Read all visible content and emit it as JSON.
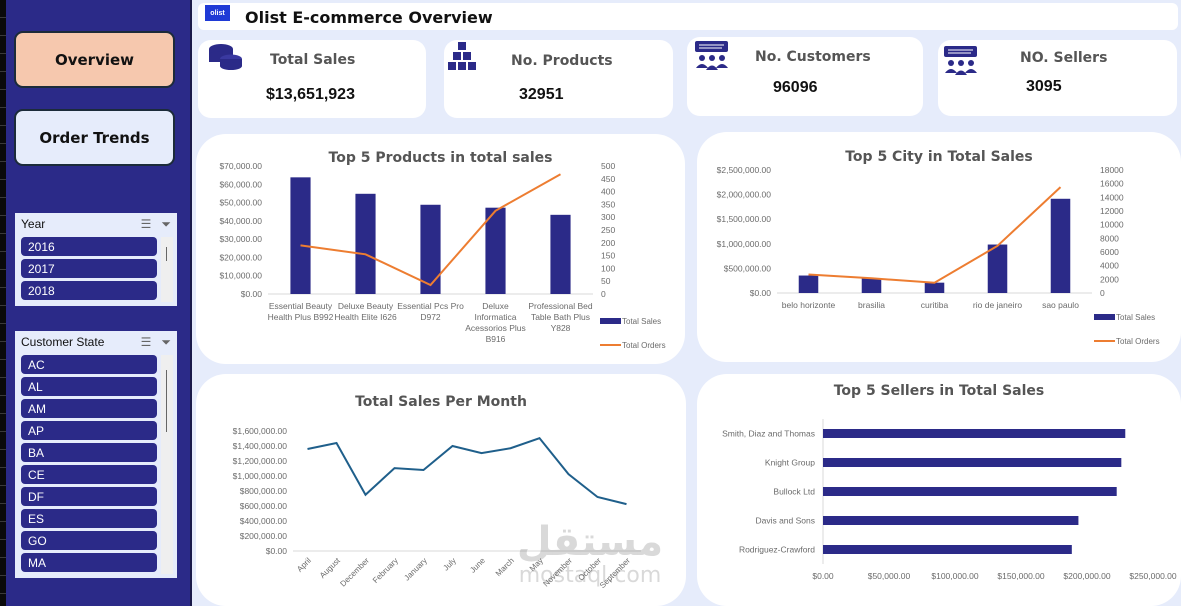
{
  "nav": {
    "overview_label": "Overview",
    "order_trends_label": "Order Trends"
  },
  "slicers": {
    "year": {
      "title": "Year",
      "items": [
        "2016",
        "2017",
        "2018"
      ]
    },
    "customer_state": {
      "title": "Customer State",
      "items": [
        "AC",
        "AL",
        "AM",
        "AP",
        "BA",
        "CE",
        "DF",
        "ES",
        "GO",
        "MA"
      ]
    }
  },
  "header": {
    "logo_text": "olist",
    "title": "Olist E-commerce Overview"
  },
  "kpis": [
    {
      "label": "Total Sales",
      "value": "$13,651,923",
      "icon": "coins-icon"
    },
    {
      "label": "No. Products",
      "value": "32951",
      "icon": "boxes-icon"
    },
    {
      "label": "No. Customers",
      "value": "96096",
      "icon": "people-icon"
    },
    {
      "label": "NO. Sellers",
      "value": "3095",
      "icon": "people-icon"
    }
  ],
  "colors": {
    "bar": "#2b2a88",
    "line": "#ed7d31",
    "monthly_line": "#1f5f8b",
    "accent_nav": "#f6c8ae"
  },
  "chart_data": [
    {
      "type": "bar",
      "title": "Top 5 Products in total sales",
      "categories": [
        "Essential Beauty Health Plus B992",
        "Deluxe Beauty Health Elite I626",
        "Essential Pcs Pro D972",
        "Deluxe Informatica Acessorios Plus B916",
        "Professional Bed Table Bath Plus Y828"
      ],
      "category_lines": [
        [
          "Essential Beauty",
          "Health Plus B992"
        ],
        [
          "Deluxe Beauty",
          "Health Elite I626"
        ],
        [
          "Essential Pcs Pro",
          "D972"
        ],
        [
          "Deluxe",
          "Informatica",
          "Acessorios Plus",
          "B916"
        ],
        [
          "Professional Bed",
          "Table Bath Plus",
          "Y828"
        ]
      ],
      "series": [
        {
          "name": "Total Sales",
          "type": "bar",
          "axis": "left",
          "values": [
            63800,
            54800,
            48800,
            47200,
            43300
          ]
        },
        {
          "name": "Total Orders",
          "type": "line",
          "axis": "right",
          "values": [
            190,
            155,
            35,
            325,
            468
          ]
        }
      ],
      "ylim": [
        0,
        70000
      ],
      "yticks": [
        "$0.00",
        "$10,000.00",
        "$20,000.00",
        "$30,000.00",
        "$40,000.00",
        "$50,000.00",
        "$60,000.00",
        "$70,000.00"
      ],
      "y2lim": [
        0,
        500
      ],
      "y2ticks": [
        "0",
        "50",
        "100",
        "150",
        "200",
        "250",
        "300",
        "350",
        "400",
        "450",
        "500"
      ],
      "legend": "right"
    },
    {
      "type": "bar",
      "title": "Top 5 City in Total Sales",
      "categories": [
        "belo horizonte",
        "brasilia",
        "curitiba",
        "rio de janeiro",
        "sao paulo"
      ],
      "series": [
        {
          "name": "Total Sales",
          "type": "bar",
          "axis": "left",
          "values": [
            355000,
            300000,
            210000,
            985000,
            1915000
          ]
        },
        {
          "name": "Total Orders",
          "type": "line",
          "axis": "right",
          "values": [
            2700,
            2150,
            1500,
            6900,
            15500
          ]
        }
      ],
      "ylim": [
        0,
        2500000
      ],
      "yticks": [
        "$0.00",
        "$500,000.00",
        "$1,000,000.00",
        "$1,500,000.00",
        "$2,000,000.00",
        "$2,500,000.00"
      ],
      "y2lim": [
        0,
        18000
      ],
      "y2ticks": [
        "0",
        "2000",
        "4000",
        "6000",
        "8000",
        "10000",
        "12000",
        "14000",
        "16000",
        "18000"
      ],
      "legend": "right"
    },
    {
      "type": "line",
      "title": "Total Sales Per Month",
      "categories": [
        "April",
        "August",
        "December",
        "February",
        "January",
        "July",
        "June",
        "March",
        "May",
        "November",
        "October",
        "September"
      ],
      "series": [
        {
          "name": "Total Sales",
          "values": [
            1360000,
            1440000,
            750000,
            1105000,
            1080000,
            1400000,
            1305000,
            1370000,
            1505000,
            1025000,
            720000,
            625000
          ]
        }
      ],
      "ylim": [
        0,
        1600000
      ],
      "yticks": [
        "$0.00",
        "$200,000.00",
        "$400,000.00",
        "$600,000.00",
        "$800,000.00",
        "$1,000,000.00",
        "$1,200,000.00",
        "$1,400,000.00",
        "$1,600,000.00"
      ],
      "legend": "none"
    },
    {
      "type": "bar",
      "orientation": "horizontal",
      "title": "Top 5 Sellers in Total Sales",
      "categories": [
        "Smith, Diaz and Thomas",
        "Knight Group",
        "Bullock Ltd",
        "Davis and Sons",
        "Rodriguez-Crawford"
      ],
      "series": [
        {
          "name": "Total Sales",
          "values": [
            229000,
            226000,
            222500,
            193500,
            188500
          ]
        }
      ],
      "xlim": [
        0,
        250000
      ],
      "xticks": [
        "$0.00",
        "$50,000.00",
        "$100,000.00",
        "$150,000.00",
        "$200,000.00",
        "$250,000.00"
      ],
      "legend": "none"
    }
  ],
  "watermark": {
    "arabic": "مستقل",
    "latin": "mostaql.com"
  }
}
